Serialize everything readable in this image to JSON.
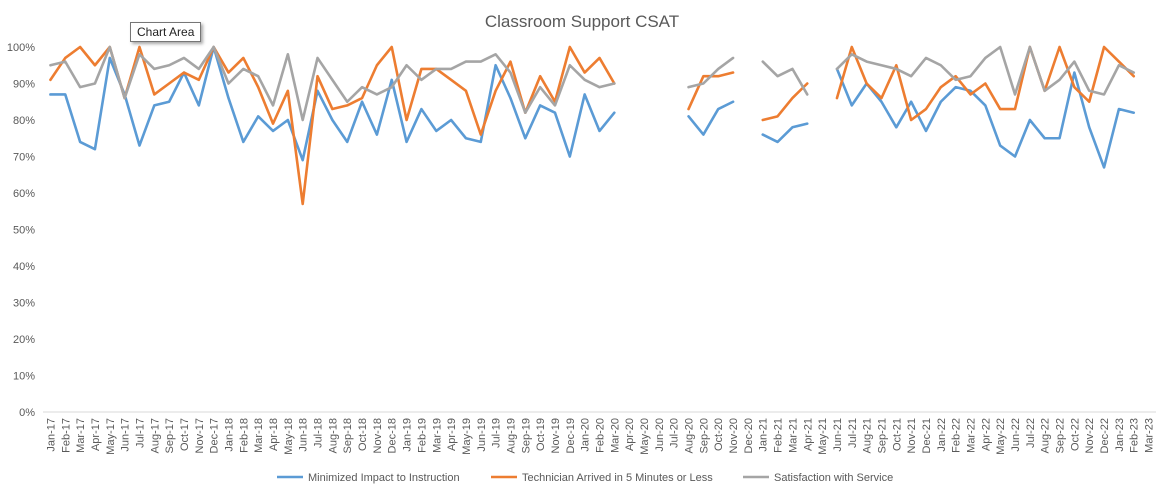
{
  "tooltip": "Chart Area",
  "chart_data": {
    "type": "line",
    "title": "Classroom Support CSAT",
    "xlabel": "",
    "ylabel": "",
    "ylim": [
      0,
      1
    ],
    "y_ticks": [
      "0%",
      "10%",
      "20%",
      "30%",
      "40%",
      "50%",
      "60%",
      "70%",
      "80%",
      "90%",
      "100%"
    ],
    "grid": "off",
    "legend_position": "bottom",
    "categories": [
      "Jan-17",
      "Feb-17",
      "Mar-17",
      "Apr-17",
      "May-17",
      "Jun-17",
      "Jul-17",
      "Aug-17",
      "Sep-17",
      "Oct-17",
      "Nov-17",
      "Dec-17",
      "Jan-18",
      "Feb-18",
      "Mar-18",
      "Apr-18",
      "May-18",
      "Jun-18",
      "Jul-18",
      "Aug-18",
      "Sep-18",
      "Oct-18",
      "Nov-18",
      "Dec-18",
      "Jan-19",
      "Feb-19",
      "Mar-19",
      "Apr-19",
      "May-19",
      "Jun-19",
      "Jul-19",
      "Aug-19",
      "Sep-19",
      "Oct-19",
      "Nov-19",
      "Dec-19",
      "Jan-20",
      "Feb-20",
      "Mar-20",
      "Apr-20",
      "May-20",
      "Jun-20",
      "Jul-20",
      "Aug-20",
      "Sep-20",
      "Oct-20",
      "Nov-20",
      "Dec-20",
      "Jan-21",
      "Feb-21",
      "Mar-21",
      "Apr-21",
      "May-21",
      "Jun-21",
      "Jul-21",
      "Aug-21",
      "Sep-21",
      "Oct-21",
      "Nov-21",
      "Dec-21",
      "Jan-22",
      "Feb-22",
      "Mar-22",
      "Apr-22",
      "May-22",
      "Jun-22",
      "Jul-22",
      "Aug-22",
      "Sep-22",
      "Oct-22",
      "Nov-22",
      "Dec-22",
      "Jan-23",
      "Feb-23",
      "Mar-23"
    ],
    "series": [
      {
        "name": "Minimized Impact to Instruction",
        "color": "#5B9BD5",
        "values": [
          0.87,
          0.87,
          0.74,
          0.72,
          0.97,
          0.87,
          0.73,
          0.84,
          0.85,
          0.93,
          0.84,
          1.0,
          0.86,
          0.74,
          0.81,
          0.77,
          0.8,
          0.69,
          0.88,
          0.8,
          0.74,
          0.85,
          0.76,
          0.91,
          0.74,
          0.83,
          0.77,
          0.8,
          0.75,
          0.74,
          0.95,
          0.86,
          0.75,
          0.84,
          0.82,
          0.7,
          0.87,
          0.77,
          0.82,
          null,
          null,
          null,
          null,
          0.81,
          0.76,
          0.83,
          0.85,
          null,
          0.76,
          0.74,
          0.78,
          0.79,
          null,
          0.94,
          0.84,
          0.9,
          0.85,
          0.78,
          0.85,
          0.77,
          0.85,
          0.89,
          0.88,
          0.84,
          0.73,
          0.7,
          0.8,
          0.75,
          0.75,
          0.93,
          0.78,
          0.67,
          0.83,
          0.82,
          null
        ]
      },
      {
        "name": "Technician Arrived in 5 Minutes or Less",
        "color": "#ED7D31",
        "values": [
          0.91,
          0.97,
          1.0,
          0.95,
          1.0,
          0.86,
          1.0,
          0.87,
          0.9,
          0.93,
          0.91,
          1.0,
          0.93,
          0.97,
          0.89,
          0.79,
          0.88,
          0.57,
          0.92,
          0.83,
          0.84,
          0.86,
          0.95,
          1.0,
          0.8,
          0.94,
          0.94,
          0.91,
          0.88,
          0.76,
          0.88,
          0.96,
          0.82,
          0.92,
          0.85,
          1.0,
          0.93,
          0.97,
          0.9,
          null,
          null,
          null,
          null,
          0.83,
          0.92,
          0.92,
          0.93,
          null,
          0.8,
          0.81,
          0.86,
          0.9,
          null,
          0.86,
          1.0,
          0.9,
          0.86,
          0.95,
          0.8,
          0.83,
          0.89,
          0.92,
          0.87,
          0.9,
          0.83,
          0.83,
          1.0,
          0.88,
          1.0,
          0.89,
          0.85,
          1.0,
          0.96,
          0.92,
          null
        ]
      },
      {
        "name": "Satisfaction with Service",
        "color": "#A5A5A5",
        "values": [
          0.95,
          0.96,
          0.89,
          0.9,
          1.0,
          0.86,
          0.98,
          0.94,
          0.95,
          0.97,
          0.94,
          1.0,
          0.9,
          0.94,
          0.92,
          0.84,
          0.98,
          0.8,
          0.97,
          0.91,
          0.85,
          0.89,
          0.87,
          0.89,
          0.95,
          0.91,
          0.94,
          0.94,
          0.96,
          0.96,
          0.98,
          0.93,
          0.82,
          0.89,
          0.84,
          0.95,
          0.91,
          0.89,
          0.9,
          null,
          null,
          null,
          null,
          0.89,
          0.9,
          0.94,
          0.97,
          null,
          0.96,
          0.92,
          0.94,
          0.87,
          null,
          0.94,
          0.98,
          0.96,
          0.95,
          0.94,
          0.92,
          0.97,
          0.95,
          0.91,
          0.92,
          0.97,
          1.0,
          0.87,
          1.0,
          0.88,
          0.91,
          0.96,
          0.88,
          0.87,
          0.95,
          0.93,
          null
        ]
      }
    ]
  }
}
